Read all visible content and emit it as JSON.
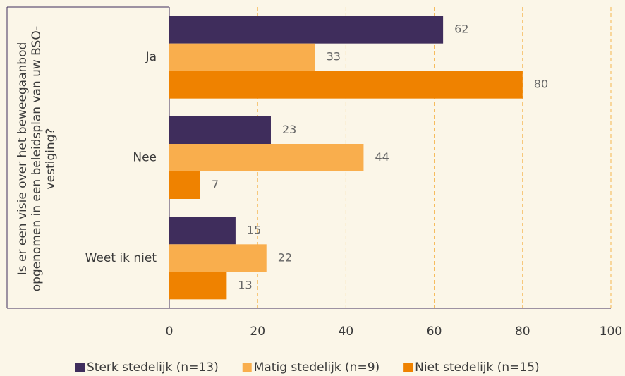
{
  "chart_data": {
    "type": "bar",
    "orientation": "horizontal",
    "ylabel_lines": [
      "Is er een visie over het beweegaanbod",
      "opgenomen in een beleidsplan van uw BSO-",
      "vestiging?"
    ],
    "categories": [
      "Ja",
      "Nee",
      "Weet ik niet"
    ],
    "series": [
      {
        "name": "Sterk stedelijk (n=13)",
        "color": "#3f2d5c",
        "values": [
          62,
          23,
          15
        ]
      },
      {
        "name": "Matig stedelijk (n=9)",
        "color": "#f9ae4d",
        "values": [
          33,
          44,
          22
        ]
      },
      {
        "name": "Niet stedelijk (n=15)",
        "color": "#ef8200",
        "values": [
          80,
          7,
          13
        ]
      }
    ],
    "xlim": [
      0,
      100
    ],
    "xticks": [
      0,
      20,
      40,
      60,
      80,
      100
    ],
    "grid": true,
    "legend": "bottom"
  }
}
